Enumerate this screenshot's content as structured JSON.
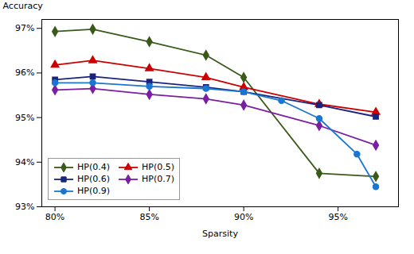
{
  "chart_data": {
    "type": "line",
    "xlabel": "Sparsity",
    "ylabel": "Accuracy",
    "series": [
      {
        "name": "HP(0.4)",
        "color": "#3a5a1a",
        "marker": "diamond",
        "x": [
          0.8,
          0.82,
          0.85,
          0.88,
          0.9,
          0.94,
          0.97
        ],
        "values": [
          0.9693,
          0.9698,
          0.967,
          0.964,
          0.959,
          0.9375,
          0.9368
        ]
      },
      {
        "name": "HP(0.5)",
        "color": "#cc0000",
        "marker": "triangle",
        "x": [
          0.8,
          0.82,
          0.85,
          0.88,
          0.9,
          0.94,
          0.97
        ],
        "values": [
          0.9618,
          0.9628,
          0.961,
          0.959,
          0.9568,
          0.953,
          0.9512
        ]
      },
      {
        "name": "HP(0.6)",
        "color": "#1a237e",
        "marker": "square",
        "x": [
          0.8,
          0.82,
          0.85,
          0.88,
          0.9,
          0.94,
          0.97
        ],
        "values": [
          0.9585,
          0.9592,
          0.958,
          0.9568,
          0.9558,
          0.9528,
          0.9502
        ]
      },
      {
        "name": "HP(0.7)",
        "color": "#7b1fa2",
        "marker": "diamond",
        "x": [
          0.8,
          0.82,
          0.85,
          0.88,
          0.9,
          0.94,
          0.97
        ],
        "values": [
          0.9562,
          0.9565,
          0.9552,
          0.9542,
          0.9528,
          0.9482,
          0.9438
        ]
      },
      {
        "name": "HP(0.9)",
        "color": "#1976d2",
        "marker": "circle",
        "x": [
          0.8,
          0.82,
          0.85,
          0.88,
          0.9,
          0.92,
          0.94,
          0.96,
          0.97
        ],
        "values": [
          0.9578,
          0.9578,
          0.957,
          0.9565,
          0.9558,
          0.9538,
          0.9498,
          0.9418,
          0.9345
        ]
      }
    ],
    "xlim": [
      0.793,
      0.982
    ],
    "ylim": [
      0.93,
      0.972
    ],
    "xticks": [
      {
        "value": 0.8,
        "label": "80%"
      },
      {
        "value": 0.85,
        "label": "85%"
      },
      {
        "value": 0.9,
        "label": "90%"
      },
      {
        "value": 0.95,
        "label": "95%"
      }
    ],
    "yticks": [
      {
        "value": 0.93,
        "label": "93%"
      },
      {
        "value": 0.94,
        "label": "94%"
      },
      {
        "value": 0.95,
        "label": "95%"
      },
      {
        "value": 0.96,
        "label": "96%"
      },
      {
        "value": 0.97,
        "label": "97%"
      }
    ],
    "grid": false,
    "legend": "lower left"
  }
}
